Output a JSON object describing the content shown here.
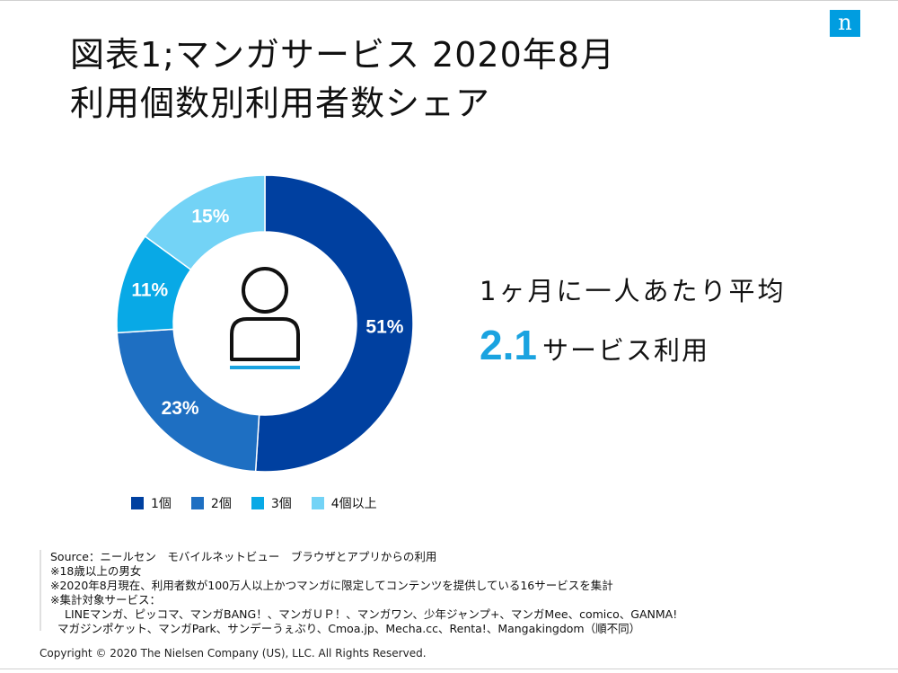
{
  "title_line1": "図表1;マンガサービス 2020年8月",
  "title_line2": "利用個数別利用者数シェア",
  "logo_text": "n",
  "callout": {
    "line1": "1ヶ月に一人あたり平均",
    "number": "2.1",
    "unit": "サービス利用"
  },
  "chart_data": {
    "type": "pie",
    "donut": true,
    "categories": [
      "1個",
      "2個",
      "3個",
      "4個以上"
    ],
    "values": [
      51,
      23,
      11,
      15
    ],
    "labels": [
      "51%",
      "23%",
      "11%",
      "15%"
    ],
    "colors": [
      "#0040a0",
      "#1e6fc2",
      "#08a9e6",
      "#73d3f6"
    ],
    "legend_position": "bottom",
    "center_icon": "person-icon"
  },
  "notes": [
    "Source：ニールセン　モバイルネットビュー　ブラウザとアプリからの利用",
    "※18歳以上の男女",
    "※2020年8月現在、利用者数が100万人以上かつマンガに限定してコンテンツを提供している16サービスを集計",
    "※集計対象サービス：",
    "LINEマンガ、ピッコマ、マンガBANG！、マンガＵＰ！、マンガワン、少年ジャンプ+、マンガMee、comico、GANMA!",
    "マガジンポケット、マンガPark、サンデーうぇぶり、Cmoa.jp、Mecha.cc、Renta!、Mangakingdom（順不同）"
  ],
  "copyright": "Copyright © 2020 The Nielsen Company (US), LLC. All Rights Reserved."
}
